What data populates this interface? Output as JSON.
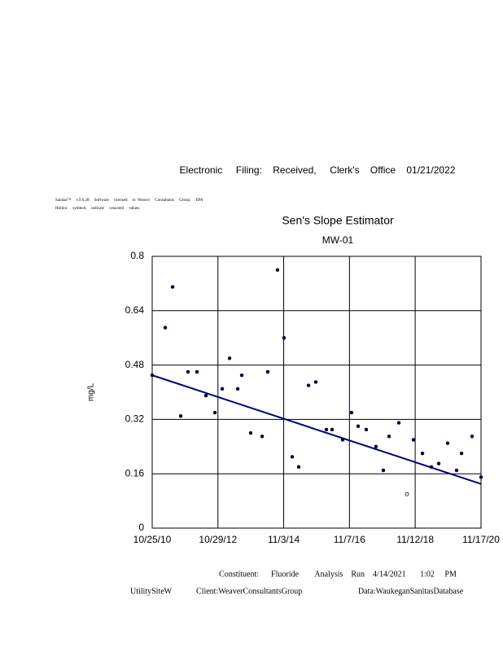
{
  "header": {
    "filing": "Electronic     Filing:    Received,     Clerk's    Office    01/21/2022",
    "software": "Sanitas™     v.9.6.28     Software     licensed     to  Weaver     Consultants     Group.     EPA",
    "note": "Hollow     symbols     indicate     censored     values."
  },
  "chart_data": {
    "type": "scatter",
    "title": "Sen's Slope Estimator",
    "subtitle": "MW-01",
    "y_label": "mg/L",
    "x": [
      "2010-10-25",
      "2011-03-20",
      "2011-06-10",
      "2011-09-09",
      "2011-11-29",
      "2012-03-08",
      "2012-06-17",
      "2012-09-25",
      "2012-12-16",
      "2013-03-08",
      "2013-06-07",
      "2013-07-22",
      "2013-10-30",
      "2014-03-07",
      "2014-05-09",
      "2014-08-26",
      "2014-11-07",
      "2015-02-06",
      "2015-04-20",
      "2015-08-07",
      "2015-10-28",
      "2016-02-23",
      "2016-04-27",
      "2016-08-23",
      "2016-12-01",
      "2017-02-12",
      "2017-05-14",
      "2017-08-31",
      "2017-11-21",
      "2018-01-24",
      "2018-05-13",
      "2018-08-12",
      "2018-10-24",
      "2019-02-01",
      "2019-05-12",
      "2019-08-02",
      "2019-11-10",
      "2020-02-18",
      "2020-04-13",
      "2020-08-09",
      "2020-11-17"
    ],
    "values": [
      0.45,
      0.59,
      0.71,
      0.33,
      0.46,
      0.46,
      0.39,
      0.34,
      0.41,
      0.5,
      0.41,
      0.45,
      0.28,
      0.27,
      0.46,
      0.76,
      0.56,
      0.21,
      0.18,
      0.42,
      0.43,
      0.29,
      0.29,
      0.26,
      0.34,
      0.3,
      0.29,
      0.24,
      0.17,
      0.27,
      0.31,
      0.1,
      0.26,
      0.22,
      0.18,
      0.19,
      0.25,
      0.17,
      0.22,
      0.27,
      0.15
    ],
    "hollow": [
      false,
      false,
      false,
      false,
      false,
      false,
      false,
      false,
      false,
      false,
      false,
      false,
      false,
      false,
      false,
      false,
      false,
      false,
      false,
      false,
      false,
      false,
      false,
      false,
      false,
      false,
      false,
      false,
      false,
      false,
      false,
      true,
      false,
      false,
      false,
      false,
      false,
      false,
      false,
      false,
      false
    ],
    "color": "#000033",
    "trend": {
      "x": [
        "2010-10-25",
        "2020-11-17"
      ],
      "values": [
        0.45,
        0.13
      ],
      "color": "#000080"
    },
    "xlim": [
      "2010-10-25",
      "2020-11-17"
    ],
    "xticks": [
      {
        "value": "2010-10-25",
        "label": "10/25/10"
      },
      {
        "value": "2012-10-29",
        "label": "10/29/12"
      },
      {
        "value": "2014-11-03",
        "label": "11/3/14"
      },
      {
        "value": "2016-11-07",
        "label": "11/7/16"
      },
      {
        "value": "2018-11-12",
        "label": "11/12/18"
      },
      {
        "value": "2020-11-17",
        "label": "11/17/20"
      }
    ],
    "ylim": [
      0,
      0.8
    ],
    "yticks": [
      0,
      0.16,
      0.32,
      0.48,
      0.64,
      0.8
    ],
    "grid": true
  },
  "footer": {
    "run": "Constituent:      Fluoride        Analysis    Run    4/14/2021       1:02     PM",
    "site": "UtilitySiteW",
    "client": "Client:WeaverConsultantsGroup",
    "data": "Data:WaukeganSanitasDatabase"
  }
}
